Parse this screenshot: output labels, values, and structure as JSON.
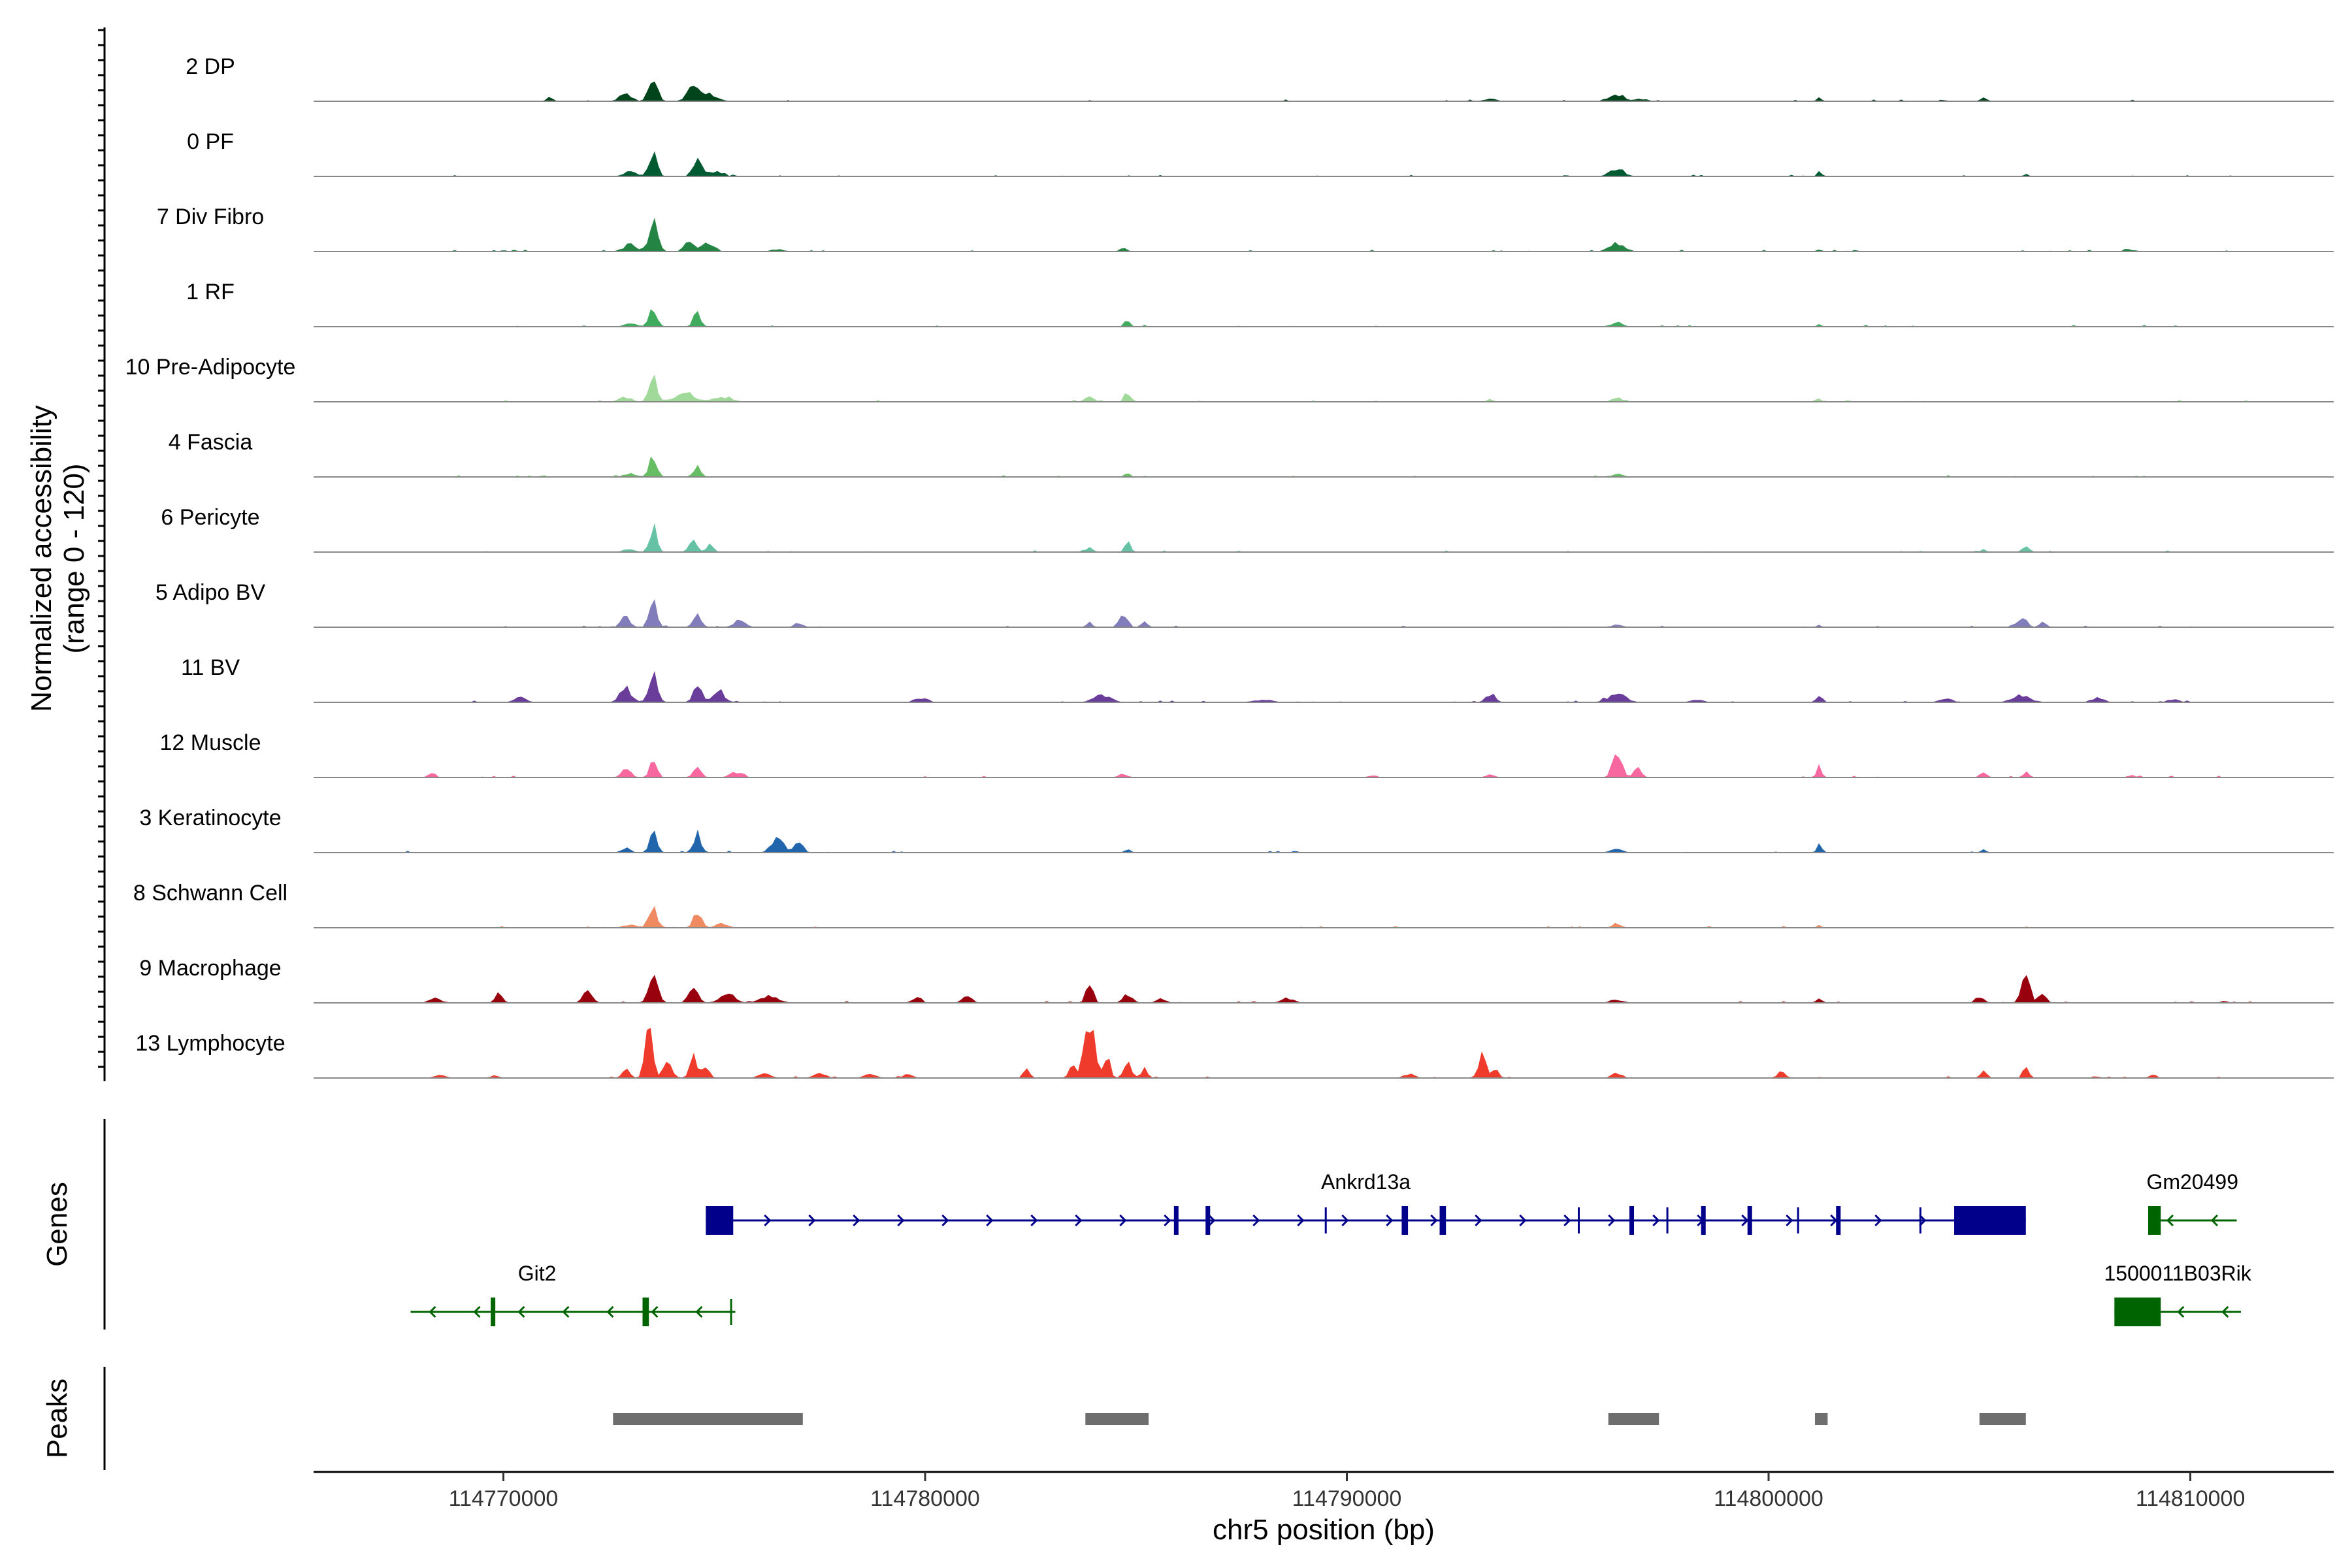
{
  "chart_data": {
    "type": "area",
    "title": "",
    "chromosome": "chr5",
    "xlabel": "chr5 position (bp)",
    "ylabel_line1": "Normalized accessibility",
    "ylabel_line2": "(range 0 - 120)",
    "xlim": [
      114765500,
      114813400
    ],
    "ylim": [
      0,
      120
    ],
    "xticks": [
      114770000,
      114780000,
      114790000,
      114800000,
      114810000
    ],
    "xtick_labels": [
      "114770000",
      "114780000",
      "114790000",
      "114800000",
      "114810000"
    ],
    "tracks": [
      {
        "name": "2 DP",
        "color": "#00441b",
        "peaks": [
          [
            114773550,
            120,
            140
          ],
          [
            114774500,
            70,
            180
          ],
          [
            114771100,
            25,
            100
          ],
          [
            114772900,
            30,
            200
          ],
          [
            114774900,
            30,
            250
          ],
          [
            114796400,
            30,
            250
          ],
          [
            114801200,
            18,
            80
          ],
          [
            114805100,
            22,
            90
          ],
          [
            114793400,
            10,
            200
          ],
          [
            114797000,
            10,
            200
          ]
        ]
      },
      {
        "name": "0 PF",
        "color": "#005a32",
        "peaks": [
          [
            114773550,
            100,
            130
          ],
          [
            114774600,
            75,
            150
          ],
          [
            114773000,
            20,
            200
          ],
          [
            114775000,
            20,
            250
          ],
          [
            114796400,
            35,
            230
          ],
          [
            114801200,
            22,
            80
          ],
          [
            114806100,
            10,
            80
          ]
        ]
      },
      {
        "name": "7 Div Fibro",
        "color": "#238443",
        "peaks": [
          [
            114773550,
            120,
            150
          ],
          [
            114774400,
            55,
            150
          ],
          [
            114774850,
            40,
            200
          ],
          [
            114773000,
            30,
            220
          ],
          [
            114796400,
            35,
            250
          ],
          [
            114784700,
            15,
            120
          ],
          [
            114776500,
            10,
            200
          ],
          [
            114801200,
            12,
            80
          ],
          [
            114808600,
            8,
            150
          ]
        ]
      },
      {
        "name": "1 RF",
        "color": "#41ab5d",
        "peaks": [
          [
            114773550,
            75,
            140
          ],
          [
            114774600,
            55,
            130
          ],
          [
            114773000,
            15,
            200
          ],
          [
            114784800,
            28,
            100
          ],
          [
            114796400,
            18,
            200
          ],
          [
            114801200,
            15,
            80
          ]
        ]
      },
      {
        "name": "10 Pre-Adipocyte",
        "color": "#a1d99b",
        "peaks": [
          [
            114773550,
            100,
            130
          ],
          [
            114774300,
            45,
            300
          ],
          [
            114775200,
            20,
            300
          ],
          [
            114772900,
            20,
            200
          ],
          [
            114783900,
            25,
            150
          ],
          [
            114784800,
            45,
            100
          ],
          [
            114796400,
            18,
            150
          ],
          [
            114801200,
            15,
            80
          ],
          [
            114793400,
            10,
            100
          ]
        ]
      },
      {
        "name": "4 Fascia",
        "color": "#66bd63",
        "peaks": [
          [
            114773550,
            90,
            130
          ],
          [
            114774600,
            45,
            130
          ],
          [
            114773000,
            15,
            200
          ],
          [
            114784800,
            15,
            100
          ],
          [
            114796400,
            12,
            200
          ]
        ]
      },
      {
        "name": "6 Pericyte",
        "color": "#66c2a4",
        "peaks": [
          [
            114773550,
            110,
            120
          ],
          [
            114774500,
            50,
            130
          ],
          [
            114774900,
            30,
            120
          ],
          [
            114773000,
            12,
            200
          ],
          [
            114783900,
            20,
            100
          ],
          [
            114784800,
            45,
            100
          ],
          [
            114805100,
            15,
            80
          ],
          [
            114806100,
            22,
            120
          ]
        ]
      },
      {
        "name": "5 Adipo BV",
        "color": "#807dba",
        "peaks": [
          [
            114773550,
            115,
            130
          ],
          [
            114772900,
            45,
            150
          ],
          [
            114774600,
            65,
            130
          ],
          [
            114775600,
            30,
            200
          ],
          [
            114777000,
            20,
            150
          ],
          [
            114783900,
            20,
            100
          ],
          [
            114784700,
            60,
            140
          ],
          [
            114785200,
            25,
            100
          ],
          [
            114806000,
            45,
            150
          ],
          [
            114806500,
            20,
            120
          ],
          [
            114801200,
            10,
            80
          ],
          [
            114796400,
            10,
            200
          ]
        ]
      },
      {
        "name": "11 BV",
        "color": "#6a3d9a",
        "peaks": [
          [
            114773550,
            110,
            140
          ],
          [
            114772900,
            60,
            200
          ],
          [
            114774600,
            60,
            150
          ],
          [
            114775100,
            45,
            200
          ],
          [
            114770400,
            25,
            200
          ],
          [
            114779900,
            20,
            200
          ],
          [
            114784200,
            30,
            300
          ],
          [
            114793400,
            35,
            150
          ],
          [
            114796400,
            35,
            300
          ],
          [
            114801200,
            30,
            100
          ],
          [
            114806000,
            30,
            300
          ],
          [
            114804200,
            20,
            200
          ],
          [
            114807800,
            20,
            200
          ],
          [
            114788000,
            12,
            300
          ],
          [
            114798300,
            12,
            200
          ],
          [
            114809600,
            12,
            200
          ]
        ]
      },
      {
        "name": "12 Muscle",
        "color": "#f768a1",
        "peaks": [
          [
            114773550,
            80,
            120
          ],
          [
            114772900,
            40,
            150
          ],
          [
            114774600,
            60,
            130
          ],
          [
            114775500,
            25,
            200
          ],
          [
            114768300,
            25,
            100
          ],
          [
            114796400,
            110,
            150
          ],
          [
            114796900,
            50,
            120
          ],
          [
            114801200,
            45,
            80
          ],
          [
            114805100,
            30,
            100
          ],
          [
            114806100,
            25,
            100
          ],
          [
            114784700,
            15,
            150
          ],
          [
            114793400,
            12,
            150
          ],
          [
            114790600,
            10,
            150
          ],
          [
            114808600,
            10,
            150
          ]
        ]
      },
      {
        "name": "3 Keratinocyte",
        "color": "#2166ac",
        "peaks": [
          [
            114773550,
            80,
            130
          ],
          [
            114774600,
            80,
            130
          ],
          [
            114776500,
            70,
            200
          ],
          [
            114777000,
            45,
            150
          ],
          [
            114772900,
            20,
            150
          ],
          [
            114784800,
            15,
            100
          ],
          [
            114796400,
            15,
            200
          ],
          [
            114801200,
            40,
            80
          ],
          [
            114805100,
            12,
            100
          ]
        ]
      },
      {
        "name": "8 Schwann Cell",
        "color": "#ef8a62",
        "peaks": [
          [
            114773550,
            90,
            140
          ],
          [
            114774600,
            70,
            140
          ],
          [
            114775200,
            20,
            200
          ],
          [
            114773000,
            15,
            200
          ],
          [
            114796400,
            15,
            150
          ],
          [
            114801200,
            10,
            80
          ]
        ]
      },
      {
        "name": "9 Macrophage",
        "color": "#99000d",
        "peaks": [
          [
            114773550,
            110,
            160
          ],
          [
            114772000,
            50,
            150
          ],
          [
            114769900,
            40,
            120
          ],
          [
            114774500,
            70,
            150
          ],
          [
            114775300,
            40,
            250
          ],
          [
            114776300,
            30,
            300
          ],
          [
            114779800,
            20,
            150
          ],
          [
            114781000,
            30,
            150
          ],
          [
            114783900,
            75,
            120
          ],
          [
            114784800,
            40,
            150
          ],
          [
            114785600,
            20,
            150
          ],
          [
            114788600,
            20,
            200
          ],
          [
            114806100,
            100,
            150
          ],
          [
            114806500,
            50,
            120
          ],
          [
            114805000,
            25,
            150
          ],
          [
            114768400,
            20,
            200
          ],
          [
            114796400,
            15,
            200
          ],
          [
            114801200,
            15,
            100
          ],
          [
            114810800,
            10,
            100
          ]
        ]
      },
      {
        "name": "13 Lymphocyte",
        "color": "#ef3b2c",
        "peaks": [
          [
            114773450,
            190,
            130
          ],
          [
            114773900,
            70,
            150
          ],
          [
            114774500,
            90,
            120
          ],
          [
            114774800,
            50,
            120
          ],
          [
            114772900,
            40,
            120
          ],
          [
            114783900,
            240,
            170
          ],
          [
            114783500,
            60,
            120
          ],
          [
            114784300,
            90,
            120
          ],
          [
            114784800,
            70,
            120
          ],
          [
            114785200,
            40,
            120
          ],
          [
            114782400,
            40,
            100
          ],
          [
            114793200,
            100,
            120
          ],
          [
            114793500,
            40,
            120
          ],
          [
            114776200,
            20,
            200
          ],
          [
            114777500,
            20,
            200
          ],
          [
            114778700,
            15,
            200
          ],
          [
            114779600,
            15,
            150
          ],
          [
            114769800,
            12,
            150
          ],
          [
            114805100,
            45,
            100
          ],
          [
            114806100,
            55,
            90
          ],
          [
            114796400,
            25,
            150
          ],
          [
            114800300,
            25,
            150
          ],
          [
            114809100,
            20,
            100
          ],
          [
            114791500,
            15,
            200
          ],
          [
            114768500,
            12,
            200
          ]
        ]
      }
    ],
    "genes": [
      {
        "name": "Ankrd13a",
        "strand": "+",
        "start": 114774800,
        "end": 114806100,
        "row": 1,
        "color": "#00008b",
        "exons": [
          [
            114774800,
            114775450
          ],
          [
            114785900,
            114786000
          ],
          [
            114786650,
            114786750
          ],
          [
            114791300,
            114791450
          ],
          [
            114792200,
            114792350
          ],
          [
            114796700,
            114796800
          ],
          [
            114798400,
            114798500
          ],
          [
            114799500,
            114799600
          ],
          [
            114801600,
            114801700
          ],
          [
            114804400,
            114806100
          ]
        ],
        "thin_marks": [
          114789500,
          114795500,
          114797600,
          114800700,
          114803600
        ]
      },
      {
        "name": "Git2",
        "strand": "-",
        "start": 114767800,
        "end": 114775500,
        "row": 2,
        "color": "#006400",
        "exons": [
          [
            114769700,
            114769800
          ],
          [
            114773300,
            114773450
          ]
        ],
        "thin_marks": [
          114775400
        ]
      },
      {
        "name": "Gm20499",
        "strand": "-",
        "start": 114809000,
        "end": 114811100,
        "row": 1,
        "color": "#006400",
        "exons": [
          [
            114809000,
            114809300
          ]
        ],
        "thin_marks": []
      },
      {
        "name": "1500011B03Rik",
        "strand": "-",
        "start": 114808200,
        "end": 114811200,
        "row": 2,
        "color": "#006400",
        "exons": [
          [
            114808200,
            114809300
          ]
        ],
        "thin_marks": []
      }
    ],
    "peak_regions": [
      [
        114772600,
        114777100
      ],
      [
        114783800,
        114785300
      ],
      [
        114796200,
        114797400
      ],
      [
        114801100,
        114801400
      ],
      [
        114805000,
        114806100
      ]
    ],
    "panels": [
      "Genes",
      "Peaks"
    ]
  }
}
